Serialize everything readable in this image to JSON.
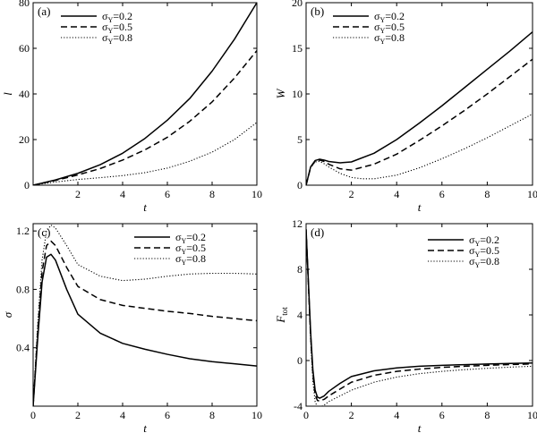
{
  "chart_data": [
    {
      "type": "line",
      "panel_label": "(a)",
      "xlabel": "t",
      "ylabel": "l",
      "xlim": [
        0,
        10
      ],
      "ylim": [
        0,
        80
      ],
      "xticks": [
        2,
        4,
        6,
        8,
        10
      ],
      "yticks": [
        0,
        20,
        40,
        60,
        80
      ],
      "legend_position": "top-left",
      "series": [
        {
          "name": "σY=0.2",
          "name_main": "σ",
          "name_sub": "Y",
          "name_value": "=0.2",
          "style": "solid",
          "x": [
            0,
            1,
            2,
            3,
            4,
            5,
            6,
            7,
            8,
            9,
            10
          ],
          "y": [
            0,
            2.3,
            5.2,
            9,
            14,
            20.5,
            28.5,
            38,
            50,
            64,
            80
          ]
        },
        {
          "name": "σY=0.5",
          "name_main": "σ",
          "name_sub": "Y",
          "name_value": "=0.5",
          "style": "dashed",
          "x": [
            0,
            1,
            2,
            3,
            4,
            5,
            6,
            7,
            8,
            9,
            10
          ],
          "y": [
            0,
            2.1,
            4.5,
            7.3,
            11,
            15.5,
            21,
            28,
            36.5,
            47,
            59
          ]
        },
        {
          "name": "σY=0.8",
          "name_main": "σ",
          "name_sub": "Y",
          "name_value": "=0.8",
          "style": "dotted",
          "x": [
            0,
            1,
            2,
            3,
            4,
            5,
            6,
            7,
            8,
            9,
            10
          ],
          "y": [
            0,
            1.4,
            2.5,
            3.3,
            4.2,
            5.5,
            7.5,
            10.5,
            14.5,
            20,
            27.5
          ]
        }
      ]
    },
    {
      "type": "line",
      "panel_label": "(b)",
      "xlabel": "t",
      "ylabel": "W",
      "xlim": [
        0,
        10
      ],
      "ylim": [
        0,
        20
      ],
      "xticks": [
        2,
        4,
        6,
        8,
        10
      ],
      "yticks": [
        0,
        5,
        10,
        15,
        20
      ],
      "legend_position": "top-right",
      "series": [
        {
          "name": "σY=0.2",
          "name_main": "σ",
          "name_sub": "Y",
          "name_value": "=0.2",
          "style": "solid",
          "x": [
            0,
            0.2,
            0.4,
            0.6,
            0.8,
            1,
            1.5,
            2,
            3,
            4,
            5,
            6,
            7,
            8,
            9,
            10
          ],
          "y": [
            0,
            2.0,
            2.7,
            2.85,
            2.75,
            2.6,
            2.45,
            2.55,
            3.5,
            5.0,
            6.8,
            8.7,
            10.7,
            12.7,
            14.7,
            16.8
          ]
        },
        {
          "name": "σY=0.5",
          "name_main": "σ",
          "name_sub": "Y",
          "name_value": "=0.5",
          "style": "dashed",
          "x": [
            0,
            0.2,
            0.4,
            0.6,
            0.8,
            1,
            1.5,
            2,
            3,
            4,
            5,
            6,
            7,
            8,
            9,
            10
          ],
          "y": [
            0,
            1.95,
            2.65,
            2.75,
            2.6,
            2.3,
            1.8,
            1.65,
            2.3,
            3.4,
            4.9,
            6.5,
            8.2,
            10.0,
            11.9,
            13.8
          ]
        },
        {
          "name": "σY=0.8",
          "name_main": "σ",
          "name_sub": "Y",
          "name_value": "=0.8",
          "style": "dotted",
          "x": [
            0,
            0.2,
            0.4,
            0.6,
            0.8,
            1,
            1.5,
            2,
            2.5,
            3,
            4,
            5,
            6,
            7,
            8,
            9,
            10
          ],
          "y": [
            0,
            1.9,
            2.55,
            2.6,
            2.35,
            2.0,
            1.3,
            0.85,
            0.7,
            0.7,
            1.1,
            1.9,
            2.9,
            4.0,
            5.2,
            6.5,
            7.8
          ]
        }
      ]
    },
    {
      "type": "line",
      "panel_label": "(c)",
      "xlabel": "t",
      "ylabel": "σ",
      "xlim": [
        0,
        10
      ],
      "ylim": [
        0,
        1.25
      ],
      "xticks": [
        0,
        2,
        4,
        6,
        8,
        10
      ],
      "yticks": [
        0.4,
        0.8,
        1.2
      ],
      "legend_position": "top-right",
      "series": [
        {
          "name": "σY=0.2",
          "name_main": "σ",
          "name_sub": "Y",
          "name_value": "=0.2",
          "style": "solid",
          "x": [
            0,
            0.2,
            0.4,
            0.6,
            0.8,
            1,
            1.5,
            2,
            3,
            4,
            5,
            6,
            7,
            8,
            9,
            10
          ],
          "y": [
            0,
            0.45,
            0.85,
            1.02,
            1.04,
            1.0,
            0.8,
            0.63,
            0.5,
            0.43,
            0.39,
            0.355,
            0.325,
            0.305,
            0.29,
            0.275
          ]
        },
        {
          "name": "σY=0.5",
          "name_main": "σ",
          "name_sub": "Y",
          "name_value": "=0.5",
          "style": "dashed",
          "x": [
            0,
            0.2,
            0.4,
            0.6,
            0.8,
            1,
            1.5,
            2,
            3,
            4,
            5,
            6,
            7,
            8,
            9,
            10
          ],
          "y": [
            0,
            0.5,
            0.92,
            1.1,
            1.13,
            1.1,
            0.95,
            0.82,
            0.73,
            0.69,
            0.67,
            0.65,
            0.635,
            0.615,
            0.6,
            0.585
          ]
        },
        {
          "name": "σY=0.8",
          "name_main": "σ",
          "name_sub": "Y",
          "name_value": "=0.8",
          "style": "dotted",
          "x": [
            0,
            0.2,
            0.4,
            0.6,
            0.8,
            1,
            1.5,
            2,
            3,
            4,
            5,
            6,
            7,
            8,
            9,
            10
          ],
          "y": [
            0,
            0.55,
            1.0,
            1.2,
            1.24,
            1.22,
            1.1,
            0.97,
            0.89,
            0.86,
            0.87,
            0.89,
            0.905,
            0.91,
            0.91,
            0.905
          ]
        }
      ]
    },
    {
      "type": "line",
      "panel_label": "(d)",
      "xlabel": "t",
      "ylabel": "F",
      "ylabel_sub": "tot",
      "xlim": [
        0,
        10
      ],
      "ylim": [
        -4,
        12
      ],
      "xticks": [
        0,
        2,
        4,
        6,
        8,
        10
      ],
      "yticks": [
        -4,
        0,
        4,
        8,
        12
      ],
      "legend_position": "top-right",
      "series": [
        {
          "name": "σY=0.2",
          "name_main": "σ",
          "name_sub": "Y",
          "name_value": "=0.2",
          "style": "solid",
          "x": [
            0,
            0.1,
            0.2,
            0.3,
            0.4,
            0.5,
            0.6,
            0.8,
            1,
            1.5,
            2,
            3,
            4,
            5,
            6,
            7,
            8,
            9,
            10
          ],
          "y": [
            11.5,
            7,
            2.5,
            -0.8,
            -2.6,
            -3.2,
            -3.3,
            -3.1,
            -2.7,
            -2.0,
            -1.4,
            -0.9,
            -0.65,
            -0.5,
            -0.42,
            -0.36,
            -0.3,
            -0.26,
            -0.22
          ]
        },
        {
          "name": "σY=0.5",
          "name_main": "σ",
          "name_sub": "Y",
          "name_value": "=0.5",
          "style": "dashed",
          "x": [
            0,
            0.1,
            0.2,
            0.3,
            0.4,
            0.5,
            0.6,
            0.8,
            1,
            1.5,
            2,
            3,
            4,
            5,
            6,
            7,
            8,
            9,
            10
          ],
          "y": [
            11.5,
            6.8,
            2.2,
            -1.2,
            -3.0,
            -3.5,
            -3.55,
            -3.4,
            -3.1,
            -2.5,
            -1.9,
            -1.3,
            -0.95,
            -0.75,
            -0.6,
            -0.5,
            -0.42,
            -0.35,
            -0.3
          ]
        },
        {
          "name": "σY=0.8",
          "name_main": "σ",
          "name_sub": "Y",
          "name_value": "=0.8",
          "style": "dotted",
          "x": [
            0,
            0.1,
            0.2,
            0.3,
            0.4,
            0.5,
            0.6,
            0.8,
            1,
            1.5,
            2,
            3,
            4,
            5,
            6,
            7,
            8,
            9,
            10
          ],
          "y": [
            11.5,
            6.5,
            1.8,
            -1.8,
            -3.6,
            -4.1,
            -4.1,
            -3.9,
            -3.6,
            -3.1,
            -2.6,
            -1.9,
            -1.45,
            -1.15,
            -0.95,
            -0.8,
            -0.68,
            -0.58,
            -0.5
          ]
        }
      ]
    }
  ]
}
